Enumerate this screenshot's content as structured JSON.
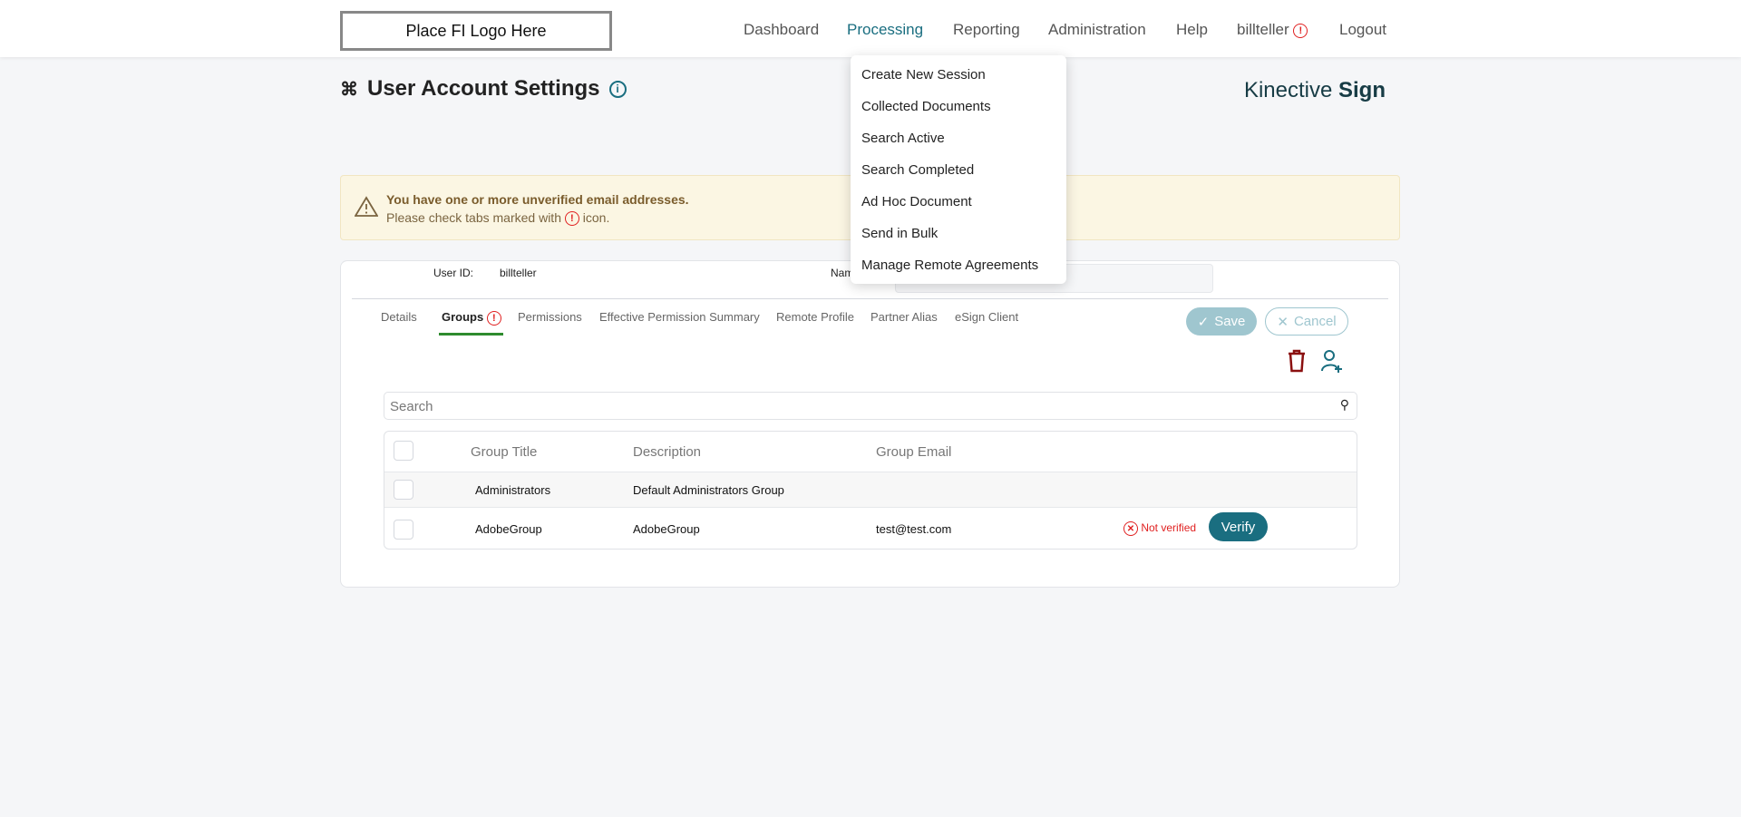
{
  "header": {
    "logo": "Place FI Logo Here",
    "nav": [
      "Dashboard",
      "Processing",
      "Reporting",
      "Administration",
      "Help",
      "billteller",
      "Logout"
    ],
    "active": "Processing"
  },
  "page": {
    "title": "User Account Settings",
    "brand_light": "Kinective",
    "brand_bold": "Sign"
  },
  "alert": {
    "title": "You have one or more unverified email addresses.",
    "text_before": "Please check tabs marked with",
    "text_after": "icon."
  },
  "user": {
    "id_label": "User ID:",
    "id_value": "billteller",
    "name_label": "Nam"
  },
  "tabs": [
    "Details",
    "Groups",
    "Permissions",
    "Effective Permission Summary",
    "Remote Profile",
    "Partner Alias",
    "eSign Client"
  ],
  "actions": {
    "save": "Save",
    "cancel": "Cancel"
  },
  "search": {
    "placeholder": "Search"
  },
  "table": {
    "headers": [
      "Group Title",
      "Description",
      "Group Email"
    ],
    "rows": [
      {
        "title": "Administrators",
        "description": "Default Administrators Group",
        "email": ""
      },
      {
        "title": "AdobeGroup",
        "description": "AdobeGroup",
        "email": "test@test.com",
        "status": "Not verified",
        "action": "Verify"
      }
    ]
  },
  "dropdown": [
    "Create New Session",
    "Collected Documents",
    "Search Active",
    "Search Completed",
    "Ad Hoc Document",
    "Send in Bulk",
    "Manage Remote Agreements"
  ],
  "colors": {
    "accent": "#1a6e80",
    "error": "#e02020",
    "tab_underline": "#2e8b2e"
  }
}
